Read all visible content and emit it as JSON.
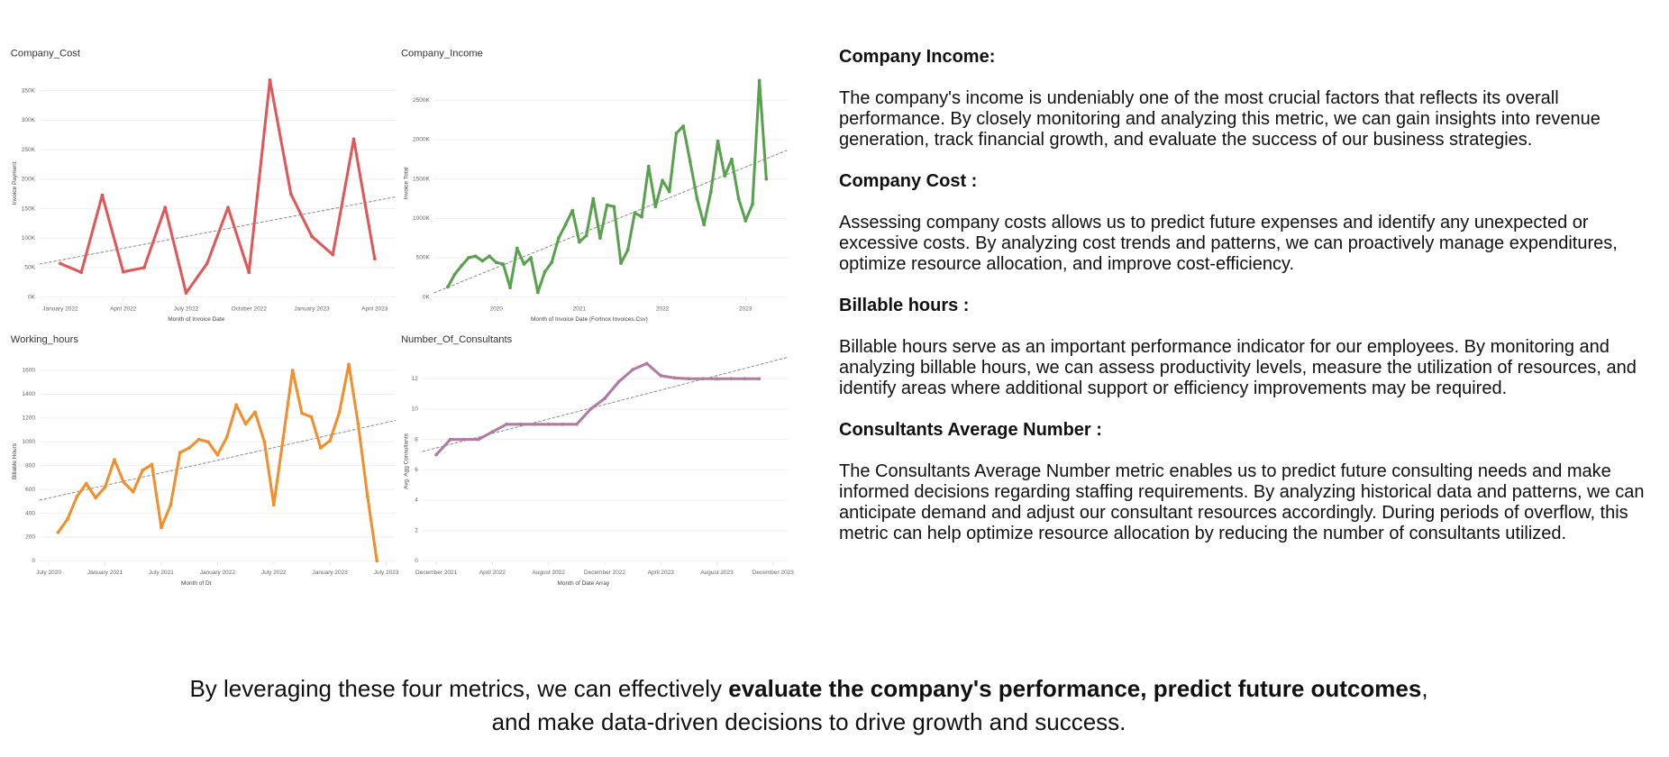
{
  "chart_data": [
    {
      "type": "line",
      "title": "Company_Cost",
      "x_label": "Month of Invoice Date",
      "y_label": "Invoice Payment",
      "color": "#e15759",
      "grid": true,
      "x": [
        "2022-01",
        "2022-02",
        "2022-03",
        "2022-04",
        "2022-05",
        "2022-06",
        "2022-07",
        "2022-08",
        "2022-09",
        "2022-10",
        "2022-11",
        "2022-12",
        "2023-01",
        "2023-02",
        "2023-03",
        "2023-04"
      ],
      "values": [
        57000,
        42000,
        173000,
        43000,
        50000,
        152000,
        7000,
        57000,
        152000,
        42000,
        368000,
        175000,
        103000,
        72000,
        268000,
        65000
      ],
      "trend": [
        56000,
        170000
      ],
      "xlim": [
        "2021-12",
        "2023-05"
      ],
      "ylim": [
        0,
        386000
      ],
      "xticks": [
        {
          "value": "2022-01",
          "label": "January 2022"
        },
        {
          "value": "2022-04",
          "label": "April 2022"
        },
        {
          "value": "2022-07",
          "label": "July 2022"
        },
        {
          "value": "2022-10",
          "label": "October 2022"
        },
        {
          "value": "2023-01",
          "label": "January 2023"
        },
        {
          "value": "2023-04",
          "label": "April 2023"
        }
      ],
      "yticks": [
        {
          "value": 0,
          "label": "0K"
        },
        {
          "value": 50000,
          "label": "50K"
        },
        {
          "value": 100000,
          "label": "100K"
        },
        {
          "value": 150000,
          "label": "150K"
        },
        {
          "value": 200000,
          "label": "200K"
        },
        {
          "value": 250000,
          "label": "250K"
        },
        {
          "value": 300000,
          "label": "300K"
        },
        {
          "value": 350000,
          "label": "350K"
        }
      ]
    },
    {
      "type": "line",
      "title": "Company_Income",
      "x_label": "Month of Invoice Date (Fortnox Invoices.Csv)",
      "y_label": "Invoice Total",
      "color": "#59a14f",
      "grid": true,
      "x": [
        "2019-06",
        "2019-07",
        "2019-08",
        "2019-09",
        "2019-10",
        "2019-11",
        "2019-12",
        "2020-01",
        "2020-02",
        "2020-03",
        "2020-04",
        "2020-05",
        "2020-06",
        "2020-07",
        "2020-08",
        "2020-09",
        "2020-10",
        "2020-11",
        "2020-12",
        "2021-01",
        "2021-02",
        "2021-03",
        "2021-04",
        "2021-05",
        "2021-06",
        "2021-07",
        "2021-08",
        "2021-09",
        "2021-10",
        "2021-11",
        "2021-12",
        "2022-01",
        "2022-02",
        "2022-03",
        "2022-04",
        "2022-05",
        "2022-06",
        "2022-07",
        "2022-08",
        "2022-09",
        "2022-10",
        "2022-11",
        "2022-12",
        "2023-01",
        "2023-02",
        "2023-03",
        "2023-04"
      ],
      "values": [
        130000,
        290000,
        400000,
        500000,
        520000,
        460000,
        520000,
        440000,
        420000,
        120000,
        620000,
        420000,
        500000,
        60000,
        320000,
        440000,
        750000,
        920000,
        1100000,
        700000,
        780000,
        1250000,
        750000,
        1170000,
        1150000,
        430000,
        600000,
        1070000,
        1020000,
        1660000,
        1150000,
        1480000,
        1340000,
        2080000,
        2170000,
        1720000,
        1250000,
        920000,
        1340000,
        1980000,
        1540000,
        1750000,
        1250000,
        970000,
        1180000,
        2750000,
        1500000
      ],
      "trend": [
        54000,
        1865000
      ],
      "xlim": [
        "2019-04",
        "2023-07"
      ],
      "ylim": [
        0,
        2890000
      ],
      "xticks": [
        {
          "value": "2020-01",
          "label": "2020"
        },
        {
          "value": "2021-01",
          "label": "2021"
        },
        {
          "value": "2022-01",
          "label": "2022"
        },
        {
          "value": "2023-01",
          "label": "2023"
        }
      ],
      "yticks": [
        {
          "value": 0,
          "label": "0K"
        },
        {
          "value": 500000,
          "label": "500K"
        },
        {
          "value": 1000000,
          "label": "1000K"
        },
        {
          "value": 1500000,
          "label": "1500K"
        },
        {
          "value": 2000000,
          "label": "2000K"
        },
        {
          "value": 2500000,
          "label": "2500K"
        }
      ]
    },
    {
      "type": "line",
      "title": "Working_hours",
      "x_label": "Month of Dt",
      "y_label": "Billable Hours",
      "color": "#f28e2b",
      "grid": true,
      "x": [
        "2020-08",
        "2020-09",
        "2020-10",
        "2020-11",
        "2020-12",
        "2021-01",
        "2021-02",
        "2021-03",
        "2021-04",
        "2021-05",
        "2021-06",
        "2021-07",
        "2021-08",
        "2021-09",
        "2021-10",
        "2021-11",
        "2021-12",
        "2022-01",
        "2022-02",
        "2022-03",
        "2022-04",
        "2022-05",
        "2022-06",
        "2022-07",
        "2022-08",
        "2022-09",
        "2022-10",
        "2022-11",
        "2022-12",
        "2023-01",
        "2023-02",
        "2023-03",
        "2023-04",
        "2023-05",
        "2023-06"
      ],
      "values": [
        240,
        350,
        540,
        650,
        530,
        620,
        850,
        660,
        580,
        760,
        810,
        280,
        470,
        910,
        950,
        1020,
        1000,
        890,
        1040,
        1310,
        1150,
        1250,
        1000,
        470,
        1030,
        1600,
        1240,
        1210,
        950,
        1010,
        1250,
        1650,
        1150,
        540,
        0
      ],
      "trend": [
        510,
        1180
      ],
      "xlim": [
        "2020-06",
        "2023-08"
      ],
      "ylim": [
        0,
        1670
      ],
      "xticks": [
        {
          "value": "2020-07",
          "label": "July 2020"
        },
        {
          "value": "2021-01",
          "label": "January 2021"
        },
        {
          "value": "2021-07",
          "label": "July 2021"
        },
        {
          "value": "2022-01",
          "label": "January 2022"
        },
        {
          "value": "2022-07",
          "label": "July 2022"
        },
        {
          "value": "2023-01",
          "label": "January 2023"
        },
        {
          "value": "2023-07",
          "label": "July 2023"
        }
      ],
      "yticks": [
        0,
        200,
        400,
        600,
        800,
        1000,
        1200,
        1400,
        1600
      ]
    },
    {
      "type": "line",
      "title": "Number_Of_Consultants",
      "x_label": "Month of Date Array",
      "y_label": "Avg. Agg Consultants",
      "color": "#b07aa1",
      "grid": true,
      "x": [
        "2021-12",
        "2022-01",
        "2022-02",
        "2022-03",
        "2022-04",
        "2022-05",
        "2022-06",
        "2022-07",
        "2022-08",
        "2022-09",
        "2022-10",
        "2022-11",
        "2022-12",
        "2023-01",
        "2023-02",
        "2023-03",
        "2023-04",
        "2023-05",
        "2023-06",
        "2023-07",
        "2023-08",
        "2023-09",
        "2023-10",
        "2023-11"
      ],
      "values": [
        7,
        8,
        8,
        8,
        8.5,
        9,
        9,
        9,
        9,
        9,
        9,
        10,
        10.7,
        11.8,
        12.6,
        13,
        12.2,
        12.05,
        12,
        12,
        12,
        12,
        12,
        12
      ],
      "trend": [
        7.2,
        13.4
      ],
      "xlim": [
        "2021-11",
        "2024-01"
      ],
      "ylim": [
        0,
        13.1
      ],
      "xticks": [
        {
          "value": "2021-12",
          "label": "December 2021"
        },
        {
          "value": "2022-04",
          "label": "April 2022"
        },
        {
          "value": "2022-08",
          "label": "August 2022"
        },
        {
          "value": "2022-12",
          "label": "December 2022"
        },
        {
          "value": "2023-04",
          "label": "April 2023"
        },
        {
          "value": "2023-08",
          "label": "August 2023"
        },
        {
          "value": "2023-12",
          "label": "December 2023"
        }
      ],
      "yticks": [
        0,
        2,
        4,
        6,
        8,
        10,
        12
      ]
    }
  ],
  "text_panel": {
    "sections": [
      {
        "heading": "Company Income:",
        "body": "The company's income is undeniably one of the most crucial factors that reflects its overall performance. By closely monitoring and analyzing this metric, we can gain insights into revenue generation, track financial growth, and evaluate the success of our business strategies."
      },
      {
        "heading": "Company Cost :",
        "body": "Assessing company costs allows us to predict future expenses and identify any unexpected or excessive costs. By analyzing cost trends and patterns, we can proactively manage expenditures, optimize resource allocation, and improve cost-efficiency."
      },
      {
        "heading": "Billable hours :",
        "body": "Billable hours serve as an important performance indicator for our employees. By monitoring and analyzing billable hours, we can assess productivity levels, measure the utilization of resources, and identify areas where additional support or efficiency improvements may be required."
      },
      {
        "heading": "Consultants Average Number :",
        "body": "The Consultants Average Number metric enables us to predict future consulting needs and make informed decisions regarding staffing requirements. By analyzing historical data and patterns, we can anticipate demand and adjust our consultant resources accordingly. During periods of overflow, this metric can help optimize resource allocation by reducing the number of consultants utilized."
      }
    ]
  },
  "footer": {
    "line1_start": "By leveraging these four metrics, we can effectively ",
    "line1_bold": "evaluate the company's performance, predict future outcomes",
    "line1_end": ",",
    "line2": "and make data-driven decisions to drive growth and success."
  }
}
